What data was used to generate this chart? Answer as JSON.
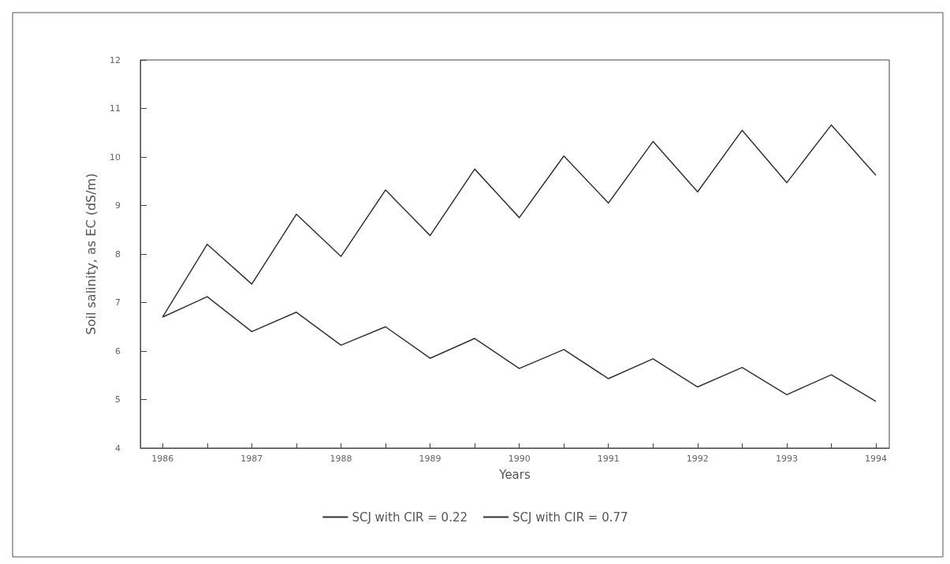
{
  "chart_data": {
    "type": "line",
    "xlabel": "Years",
    "ylabel": "Soil salinity, as EC (dS/m)",
    "x": [
      1986,
      1986.5,
      1987,
      1987.5,
      1988,
      1988.5,
      1989,
      1989.5,
      1990,
      1990.5,
      1991,
      1991.5,
      1992,
      1992.5,
      1993,
      1993.5,
      1994
    ],
    "series": [
      {
        "name": "SCJ with CIR = 0.22",
        "color": "#333333",
        "values": [
          6.7,
          8.2,
          7.38,
          8.82,
          7.95,
          9.32,
          8.38,
          9.75,
          8.75,
          10.02,
          9.05,
          10.32,
          9.28,
          10.55,
          9.47,
          10.66,
          9.62
        ]
      },
      {
        "name": "SCJ with CIR = 0.77",
        "color": "#333333",
        "values": [
          6.7,
          7.12,
          6.4,
          6.8,
          6.12,
          6.5,
          5.85,
          6.26,
          5.64,
          6.03,
          5.43,
          5.84,
          5.26,
          5.66,
          5.1,
          5.51,
          4.96
        ]
      }
    ],
    "xlim": [
      1985.75,
      1994.15
    ],
    "xticks": [
      1986,
      {
        "value": 1986.5,
        "label": null
      },
      1987,
      {
        "value": 1987.5,
        "label": null
      },
      1988,
      {
        "value": 1988.5,
        "label": null
      },
      1989,
      {
        "value": 1989.5,
        "label": null
      },
      1990,
      {
        "value": 1990.5,
        "label": null
      },
      1991,
      {
        "value": 1991.5,
        "label": null
      },
      1992,
      {
        "value": 1992.5,
        "label": null
      },
      1993,
      {
        "value": 1993.5,
        "label": null
      },
      1994
    ],
    "ylim": [
      4,
      12
    ],
    "yticks": [
      4,
      5,
      6,
      7,
      8,
      9,
      10,
      11,
      12
    ],
    "grid": false,
    "legend": "bottom",
    "marker": "none",
    "line_style": "solid"
  }
}
